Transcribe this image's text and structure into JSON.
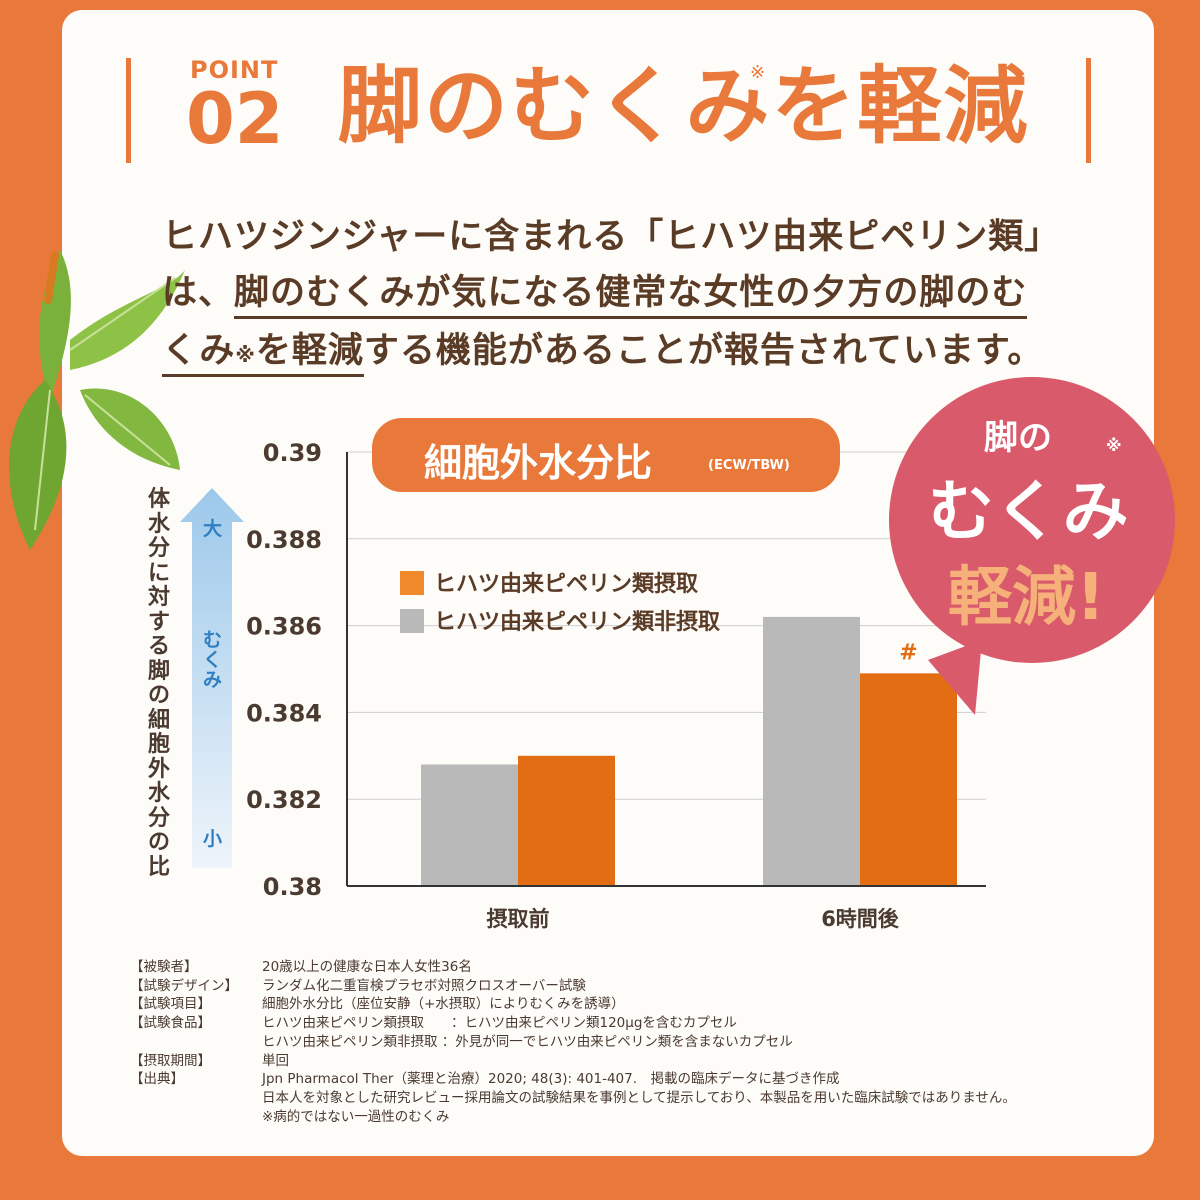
{
  "header": {
    "point_label": "POINT",
    "point_number": "02",
    "headline": "脚のむくみを軽減",
    "headline_mark": "※"
  },
  "body": {
    "line1": "ヒハツジンジャーに含まれる「ヒハツ由来ピペリン類」",
    "line2_start": "は、",
    "line2_underlined": "脚のむくみが気になる健常な女性の夕方の脚のむ",
    "line3_underlined": "くみ",
    "line3_mark": "※",
    "line3_underlined_end": "を軽減",
    "line3_end": "する機能があることが報告されています。"
  },
  "badge": {
    "title": "細胞外水分比",
    "subtitle": "(ECW/TBW)"
  },
  "y_axis_description": "体水分に対する脚の細胞外水分の比",
  "arrow_labels": {
    "top": "大",
    "middle": "むくみ",
    "bottom": "小"
  },
  "bubble": {
    "line1": "脚の",
    "line2": "むくみ",
    "line2_mark": "※",
    "line3": "軽減!"
  },
  "colors": {
    "background": "#e8793a",
    "intake": "#e36d13",
    "non_intake": "#b9b9b9",
    "bubble": "#d85a6b"
  },
  "chart_data": {
    "type": "bar",
    "categories": [
      "摂取前",
      "6時間後"
    ],
    "series": [
      {
        "name": "ヒハツ由来ピペリン類非摂取",
        "values": [
          0.3828,
          0.3862
        ]
      },
      {
        "name": "ヒハツ由来ピペリン類摂取",
        "values": [
          0.383,
          0.3849
        ]
      }
    ],
    "legend_order": [
      "ヒハツ由来ピペリン類摂取",
      "ヒハツ由来ピペリン類非摂取"
    ],
    "ylim": [
      0.38,
      0.39
    ],
    "yticks": [
      "0.39",
      "0.388",
      "0.386",
      "0.384",
      "0.382",
      "0.38"
    ],
    "annotation": "#",
    "grid": true,
    "legend_position": "top-left"
  },
  "notes": [
    {
      "label": "【被験者】",
      "text": "20歳以上の健康な日本人女性36名"
    },
    {
      "label": "【試験デザイン】",
      "text": "ランダム化二重盲検プラセボ対照クロスオーバー試験"
    },
    {
      "label": "【試験項目】",
      "text": "細胞外水分比（座位安静（+水摂取）によりむくみを誘導）"
    },
    {
      "label": "【試験食品】",
      "text": "ヒハツ由来ピペリン類摂取　　：ヒハツ由来ピペリン類120μgを含むカプセル"
    },
    {
      "label": "",
      "text": "ヒハツ由来ピペリン類非摂取 ：外見が同一でヒハツ由来ピペリン類を含まないカプセル"
    },
    {
      "label": "【摂取期間】",
      "text": "単回"
    },
    {
      "label": "【出典】",
      "text": "Jpn Pharmacol Ther（薬理と治療）2020; 48(3): 401-407.　掲載の臨床データに基づき作成"
    },
    {
      "label": "",
      "text": "日本人を対象とした研究レビュー採用論文の試験結果を事例として提示しており、本製品を用いた臨床試験ではありません。"
    },
    {
      "label": "",
      "text": "※病的ではない一過性のむくみ"
    }
  ]
}
